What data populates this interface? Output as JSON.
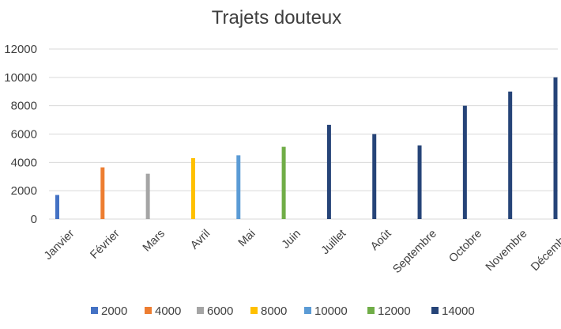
{
  "chart_data": {
    "type": "bar",
    "title": "Trajets douteux",
    "xlabel": "",
    "ylabel": "",
    "ylim": [
      0,
      12000
    ],
    "yticks": [
      0,
      2000,
      4000,
      6000,
      8000,
      10000,
      12000
    ],
    "grid": true,
    "legend_position": "bottom",
    "categories": [
      "Janvier",
      "Février",
      "Mars",
      "Avril",
      "Mai",
      "Juin",
      "Juillet",
      "Août",
      "Septembre",
      "Octobre",
      "Novembre",
      "Décembre"
    ],
    "values": [
      1700,
      3650,
      3200,
      4300,
      4500,
      5100,
      6650,
      6000,
      5200,
      8000,
      9000,
      10000
    ],
    "bar_colors": [
      "#4472c4",
      "#ed7d31",
      "#a5a5a5",
      "#ffc000",
      "#5b9bd5",
      "#70ad47",
      "#264478",
      "#264478",
      "#264478",
      "#264478",
      "#264478",
      "#264478"
    ],
    "legend": [
      {
        "label": "2000",
        "color": "#4472c4"
      },
      {
        "label": "4000",
        "color": "#ed7d31"
      },
      {
        "label": "6000",
        "color": "#a5a5a5"
      },
      {
        "label": "8000",
        "color": "#ffc000"
      },
      {
        "label": "10000",
        "color": "#5b9bd5"
      },
      {
        "label": "12000",
        "color": "#70ad47"
      },
      {
        "label": "14000",
        "color": "#264478"
      }
    ]
  }
}
